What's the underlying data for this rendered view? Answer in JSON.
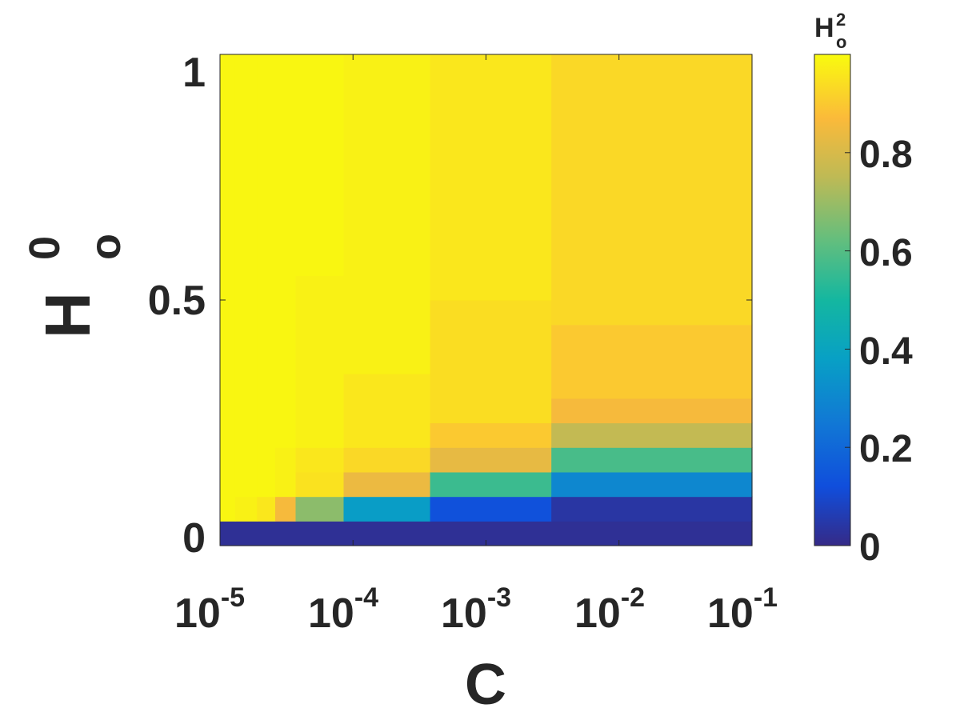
{
  "chart_data": {
    "type": "heatmap",
    "xlabel": "C",
    "ylabel": {
      "base": "H",
      "sub": "o",
      "sup": "0"
    },
    "colorbar_label": {
      "base": "H",
      "sub": "o",
      "sup": "2"
    },
    "x_scale": "log",
    "xlim": [
      1e-05,
      0.1
    ],
    "ylim": [
      0,
      1
    ],
    "x_ticks": [
      {
        "base": "10",
        "exp": "-5"
      },
      {
        "base": "10",
        "exp": "-4"
      },
      {
        "base": "10",
        "exp": "-3"
      },
      {
        "base": "10",
        "exp": "-2"
      },
      {
        "base": "10",
        "exp": "-1"
      }
    ],
    "y_ticks": [
      "0",
      "0.5",
      "1"
    ],
    "colorbar_ticks": [
      "0",
      "0.2",
      "0.4",
      "0.6",
      "0.8"
    ],
    "colorbar_range": [
      0,
      1
    ],
    "colormap": "parula",
    "regions": [
      {
        "x": [
          1e-05,
          0.1
        ],
        "y": [
          0,
          0.05
        ],
        "value": 0.02
      },
      {
        "x": [
          1e-05,
          1.3e-05
        ],
        "y": [
          0.05,
          1.0
        ],
        "value": 0.99
      },
      {
        "x": [
          1.3e-05,
          1.9e-05
        ],
        "y": [
          0.05,
          0.1
        ],
        "value": 0.98
      },
      {
        "x": [
          1.3e-05,
          1.9e-05
        ],
        "y": [
          0.1,
          1.0
        ],
        "value": 0.99
      },
      {
        "x": [
          1.9e-05,
          2.6e-05
        ],
        "y": [
          0.05,
          0.1
        ],
        "value": 0.96
      },
      {
        "x": [
          1.9e-05,
          2.6e-05
        ],
        "y": [
          0.1,
          1.0
        ],
        "value": 0.99
      },
      {
        "x": [
          2.6e-05,
          3.7e-05
        ],
        "y": [
          0.05,
          0.1
        ],
        "value": 0.86
      },
      {
        "x": [
          2.6e-05,
          3.7e-05
        ],
        "y": [
          0.1,
          0.2
        ],
        "value": 0.98
      },
      {
        "x": [
          2.6e-05,
          3.7e-05
        ],
        "y": [
          0.2,
          1.0
        ],
        "value": 0.99
      },
      {
        "x": [
          3.7e-05,
          8.5e-05
        ],
        "y": [
          0.05,
          0.1
        ],
        "value": 0.68
      },
      {
        "x": [
          3.7e-05,
          8.5e-05
        ],
        "y": [
          0.1,
          0.15
        ],
        "value": 0.95
      },
      {
        "x": [
          3.7e-05,
          8.5e-05
        ],
        "y": [
          0.15,
          0.2
        ],
        "value": 0.96
      },
      {
        "x": [
          3.7e-05,
          8.5e-05
        ],
        "y": [
          0.2,
          0.55
        ],
        "value": 0.98
      },
      {
        "x": [
          3.7e-05,
          8.5e-05
        ],
        "y": [
          0.55,
          1.0
        ],
        "value": 0.99
      },
      {
        "x": [
          8.5e-05,
          0.00038
        ],
        "y": [
          0.05,
          0.1
        ],
        "value": 0.37
      },
      {
        "x": [
          8.5e-05,
          0.00038
        ],
        "y": [
          0.1,
          0.15
        ],
        "value": 0.84
      },
      {
        "x": [
          8.5e-05,
          0.00038
        ],
        "y": [
          0.15,
          0.2
        ],
        "value": 0.93
      },
      {
        "x": [
          8.5e-05,
          0.00038
        ],
        "y": [
          0.2,
          0.35
        ],
        "value": 0.96
      },
      {
        "x": [
          8.5e-05,
          0.00038
        ],
        "y": [
          0.35,
          1.0
        ],
        "value": 0.98
      },
      {
        "x": [
          0.00038,
          0.0031
        ],
        "y": [
          0.05,
          0.1
        ],
        "value": 0.13
      },
      {
        "x": [
          0.00038,
          0.0031
        ],
        "y": [
          0.1,
          0.15
        ],
        "value": 0.56
      },
      {
        "x": [
          0.00038,
          0.0031
        ],
        "y": [
          0.15,
          0.2
        ],
        "value": 0.83
      },
      {
        "x": [
          0.00038,
          0.0031
        ],
        "y": [
          0.2,
          0.25
        ],
        "value": 0.9
      },
      {
        "x": [
          0.00038,
          0.0031
        ],
        "y": [
          0.25,
          0.5
        ],
        "value": 0.94
      },
      {
        "x": [
          0.00038,
          0.0031
        ],
        "y": [
          0.5,
          1.0
        ],
        "value": 0.96
      },
      {
        "x": [
          0.0031,
          0.1
        ],
        "y": [
          0.05,
          0.1
        ],
        "value": 0.04
      },
      {
        "x": [
          0.0031,
          0.1
        ],
        "y": [
          0.1,
          0.15
        ],
        "value": 0.3
      },
      {
        "x": [
          0.0031,
          0.1
        ],
        "y": [
          0.15,
          0.2
        ],
        "value": 0.58
      },
      {
        "x": [
          0.0031,
          0.1
        ],
        "y": [
          0.2,
          0.25
        ],
        "value": 0.76
      },
      {
        "x": [
          0.0031,
          0.1
        ],
        "y": [
          0.25,
          0.3
        ],
        "value": 0.86
      },
      {
        "x": [
          0.0031,
          0.1
        ],
        "y": [
          0.3,
          0.45
        ],
        "value": 0.9
      },
      {
        "x": [
          0.0031,
          0.1
        ],
        "y": [
          0.45,
          1.0
        ],
        "value": 0.93
      }
    ]
  }
}
